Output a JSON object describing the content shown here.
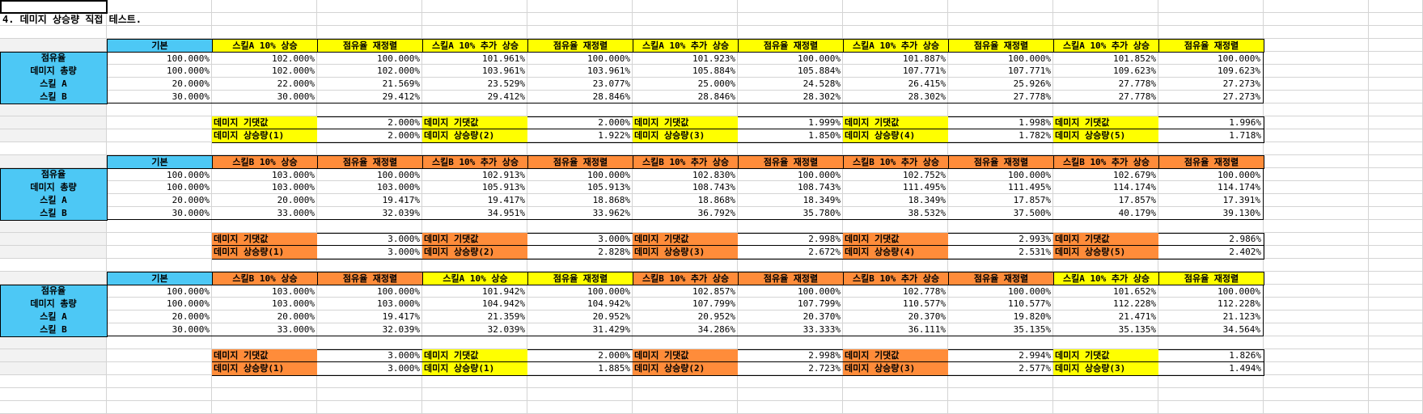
{
  "title": "4. 데미지 상승량 직접 테스트.",
  "row_labels": [
    "점유율",
    "데미지 총량",
    "스킬 A",
    "스킬 B"
  ],
  "colors": {
    "blue": "#4dc8f5",
    "yellow": "#ffff00",
    "orange": "#ff8c3a"
  },
  "tables": [
    {
      "headers": [
        "기본",
        "스킬A 10% 상승",
        "점유율 재정렬",
        "스킬A 10% 추가 상승",
        "점유율 재정렬",
        "스킬A 10% 추가 상승",
        "점유율 재정렬",
        "스킬A 10% 추가 상승",
        "점유율 재정렬",
        "스킬A 10% 추가 상승",
        "점유율 재정렬"
      ],
      "header_colors": [
        "blue",
        "yellow",
        "yellow",
        "yellow",
        "yellow",
        "yellow",
        "yellow",
        "yellow",
        "yellow",
        "yellow",
        "yellow"
      ],
      "rows": [
        [
          "100.000%",
          "102.000%",
          "100.000%",
          "101.961%",
          "100.000%",
          "101.923%",
          "100.000%",
          "101.887%",
          "100.000%",
          "101.852%",
          "100.000%"
        ],
        [
          "100.000%",
          "102.000%",
          "102.000%",
          "103.961%",
          "103.961%",
          "105.884%",
          "105.884%",
          "107.771%",
          "107.771%",
          "109.623%",
          "109.623%"
        ],
        [
          "20.000%",
          "22.000%",
          "21.569%",
          "23.529%",
          "23.077%",
          "25.000%",
          "24.528%",
          "26.415%",
          "25.926%",
          "27.778%",
          "27.273%"
        ],
        [
          "30.000%",
          "30.000%",
          "29.412%",
          "29.412%",
          "28.846%",
          "28.846%",
          "28.302%",
          "28.302%",
          "27.778%",
          "27.778%",
          "27.273%"
        ]
      ],
      "summary": [
        {
          "label1": "데미지 기댓값",
          "value1": "2.000%",
          "label2": "데미지 상승량(1)",
          "value2": "2.000%",
          "color": "yellow"
        },
        {
          "label1": "데미지 기댓값",
          "value1": "2.000%",
          "label2": "데미지 상승량(2)",
          "value2": "1.922%",
          "color": "yellow"
        },
        {
          "label1": "데미지 기댓값",
          "value1": "1.999%",
          "label2": "데미지 상승량(3)",
          "value2": "1.850%",
          "color": "yellow"
        },
        {
          "label1": "데미지 기댓값",
          "value1": "1.998%",
          "label2": "데미지 상승량(4)",
          "value2": "1.782%",
          "color": "yellow"
        },
        {
          "label1": "데미지 기댓값",
          "value1": "1.996%",
          "label2": "데미지 상승량(5)",
          "value2": "1.718%",
          "color": "yellow"
        }
      ]
    },
    {
      "headers": [
        "기본",
        "스킬B 10% 상승",
        "점유율 재정렬",
        "스킬B 10% 추가 상승",
        "점유율 재정렬",
        "스킬B 10% 추가 상승",
        "점유율 재정렬",
        "스킬B 10% 추가 상승",
        "점유율 재정렬",
        "스킬B 10% 추가 상승",
        "점유율 재정렬"
      ],
      "header_colors": [
        "blue",
        "orange",
        "orange",
        "orange",
        "orange",
        "orange",
        "orange",
        "orange",
        "orange",
        "orange",
        "orange"
      ],
      "rows": [
        [
          "100.000%",
          "103.000%",
          "100.000%",
          "102.913%",
          "100.000%",
          "102.830%",
          "100.000%",
          "102.752%",
          "100.000%",
          "102.679%",
          "100.000%"
        ],
        [
          "100.000%",
          "103.000%",
          "103.000%",
          "105.913%",
          "105.913%",
          "108.743%",
          "108.743%",
          "111.495%",
          "111.495%",
          "114.174%",
          "114.174%"
        ],
        [
          "20.000%",
          "20.000%",
          "19.417%",
          "19.417%",
          "18.868%",
          "18.868%",
          "18.349%",
          "18.349%",
          "17.857%",
          "17.857%",
          "17.391%"
        ],
        [
          "30.000%",
          "33.000%",
          "32.039%",
          "34.951%",
          "33.962%",
          "36.792%",
          "35.780%",
          "38.532%",
          "37.500%",
          "40.179%",
          "39.130%"
        ]
      ],
      "summary": [
        {
          "label1": "데미지 기댓값",
          "value1": "3.000%",
          "label2": "데미지 상승량(1)",
          "value2": "3.000%",
          "color": "orange"
        },
        {
          "label1": "데미지 기댓값",
          "value1": "3.000%",
          "label2": "데미지 상승량(2)",
          "value2": "2.828%",
          "color": "orange"
        },
        {
          "label1": "데미지 기댓값",
          "value1": "2.998%",
          "label2": "데미지 상승량(3)",
          "value2": "2.672%",
          "color": "orange"
        },
        {
          "label1": "데미지 기댓값",
          "value1": "2.993%",
          "label2": "데미지 상승량(4)",
          "value2": "2.531%",
          "color": "orange"
        },
        {
          "label1": "데미지 기댓값",
          "value1": "2.986%",
          "label2": "데미지 상승량(5)",
          "value2": "2.402%",
          "color": "orange"
        }
      ]
    },
    {
      "headers": [
        "기본",
        "스킬B 10% 상승",
        "점유율 재정렬",
        "스킬A 10% 상승",
        "점유율 재정렬",
        "스킬B 10% 추가 상승",
        "점유율 재정렬",
        "스킬B 10% 추가 상승",
        "점유율 재정렬",
        "스킬A 10% 추가 상승",
        "점유율 재정렬"
      ],
      "header_colors": [
        "blue",
        "orange",
        "orange",
        "yellow",
        "yellow",
        "orange",
        "orange",
        "orange",
        "orange",
        "yellow",
        "yellow"
      ],
      "rows": [
        [
          "100.000%",
          "103.000%",
          "100.000%",
          "101.942%",
          "100.000%",
          "102.857%",
          "100.000%",
          "102.778%",
          "100.000%",
          "101.652%",
          "100.000%"
        ],
        [
          "100.000%",
          "103.000%",
          "103.000%",
          "104.942%",
          "104.942%",
          "107.799%",
          "107.799%",
          "110.577%",
          "110.577%",
          "112.228%",
          "112.228%"
        ],
        [
          "20.000%",
          "20.000%",
          "19.417%",
          "21.359%",
          "20.952%",
          "20.952%",
          "20.370%",
          "20.370%",
          "19.820%",
          "21.471%",
          "21.123%"
        ],
        [
          "30.000%",
          "33.000%",
          "32.039%",
          "32.039%",
          "31.429%",
          "34.286%",
          "33.333%",
          "36.111%",
          "35.135%",
          "35.135%",
          "34.564%"
        ]
      ],
      "summary": [
        {
          "label1": "데미지 기댓값",
          "value1": "3.000%",
          "label2": "데미지 상승량(1)",
          "value2": "3.000%",
          "color": "orange"
        },
        {
          "label1": "데미지 기댓값",
          "value1": "2.000%",
          "label2": "데미지 상승량(1)",
          "value2": "1.885%",
          "color": "yellow"
        },
        {
          "label1": "데미지 기댓값",
          "value1": "2.998%",
          "label2": "데미지 상승량(2)",
          "value2": "2.723%",
          "color": "orange"
        },
        {
          "label1": "데미지 기댓값",
          "value1": "2.994%",
          "label2": "데미지 상승량(3)",
          "value2": "2.577%",
          "color": "orange"
        },
        {
          "label1": "데미지 기댓값",
          "value1": "1.826%",
          "label2": "데미지 상승량(3)",
          "value2": "1.494%",
          "color": "yellow"
        }
      ]
    }
  ]
}
